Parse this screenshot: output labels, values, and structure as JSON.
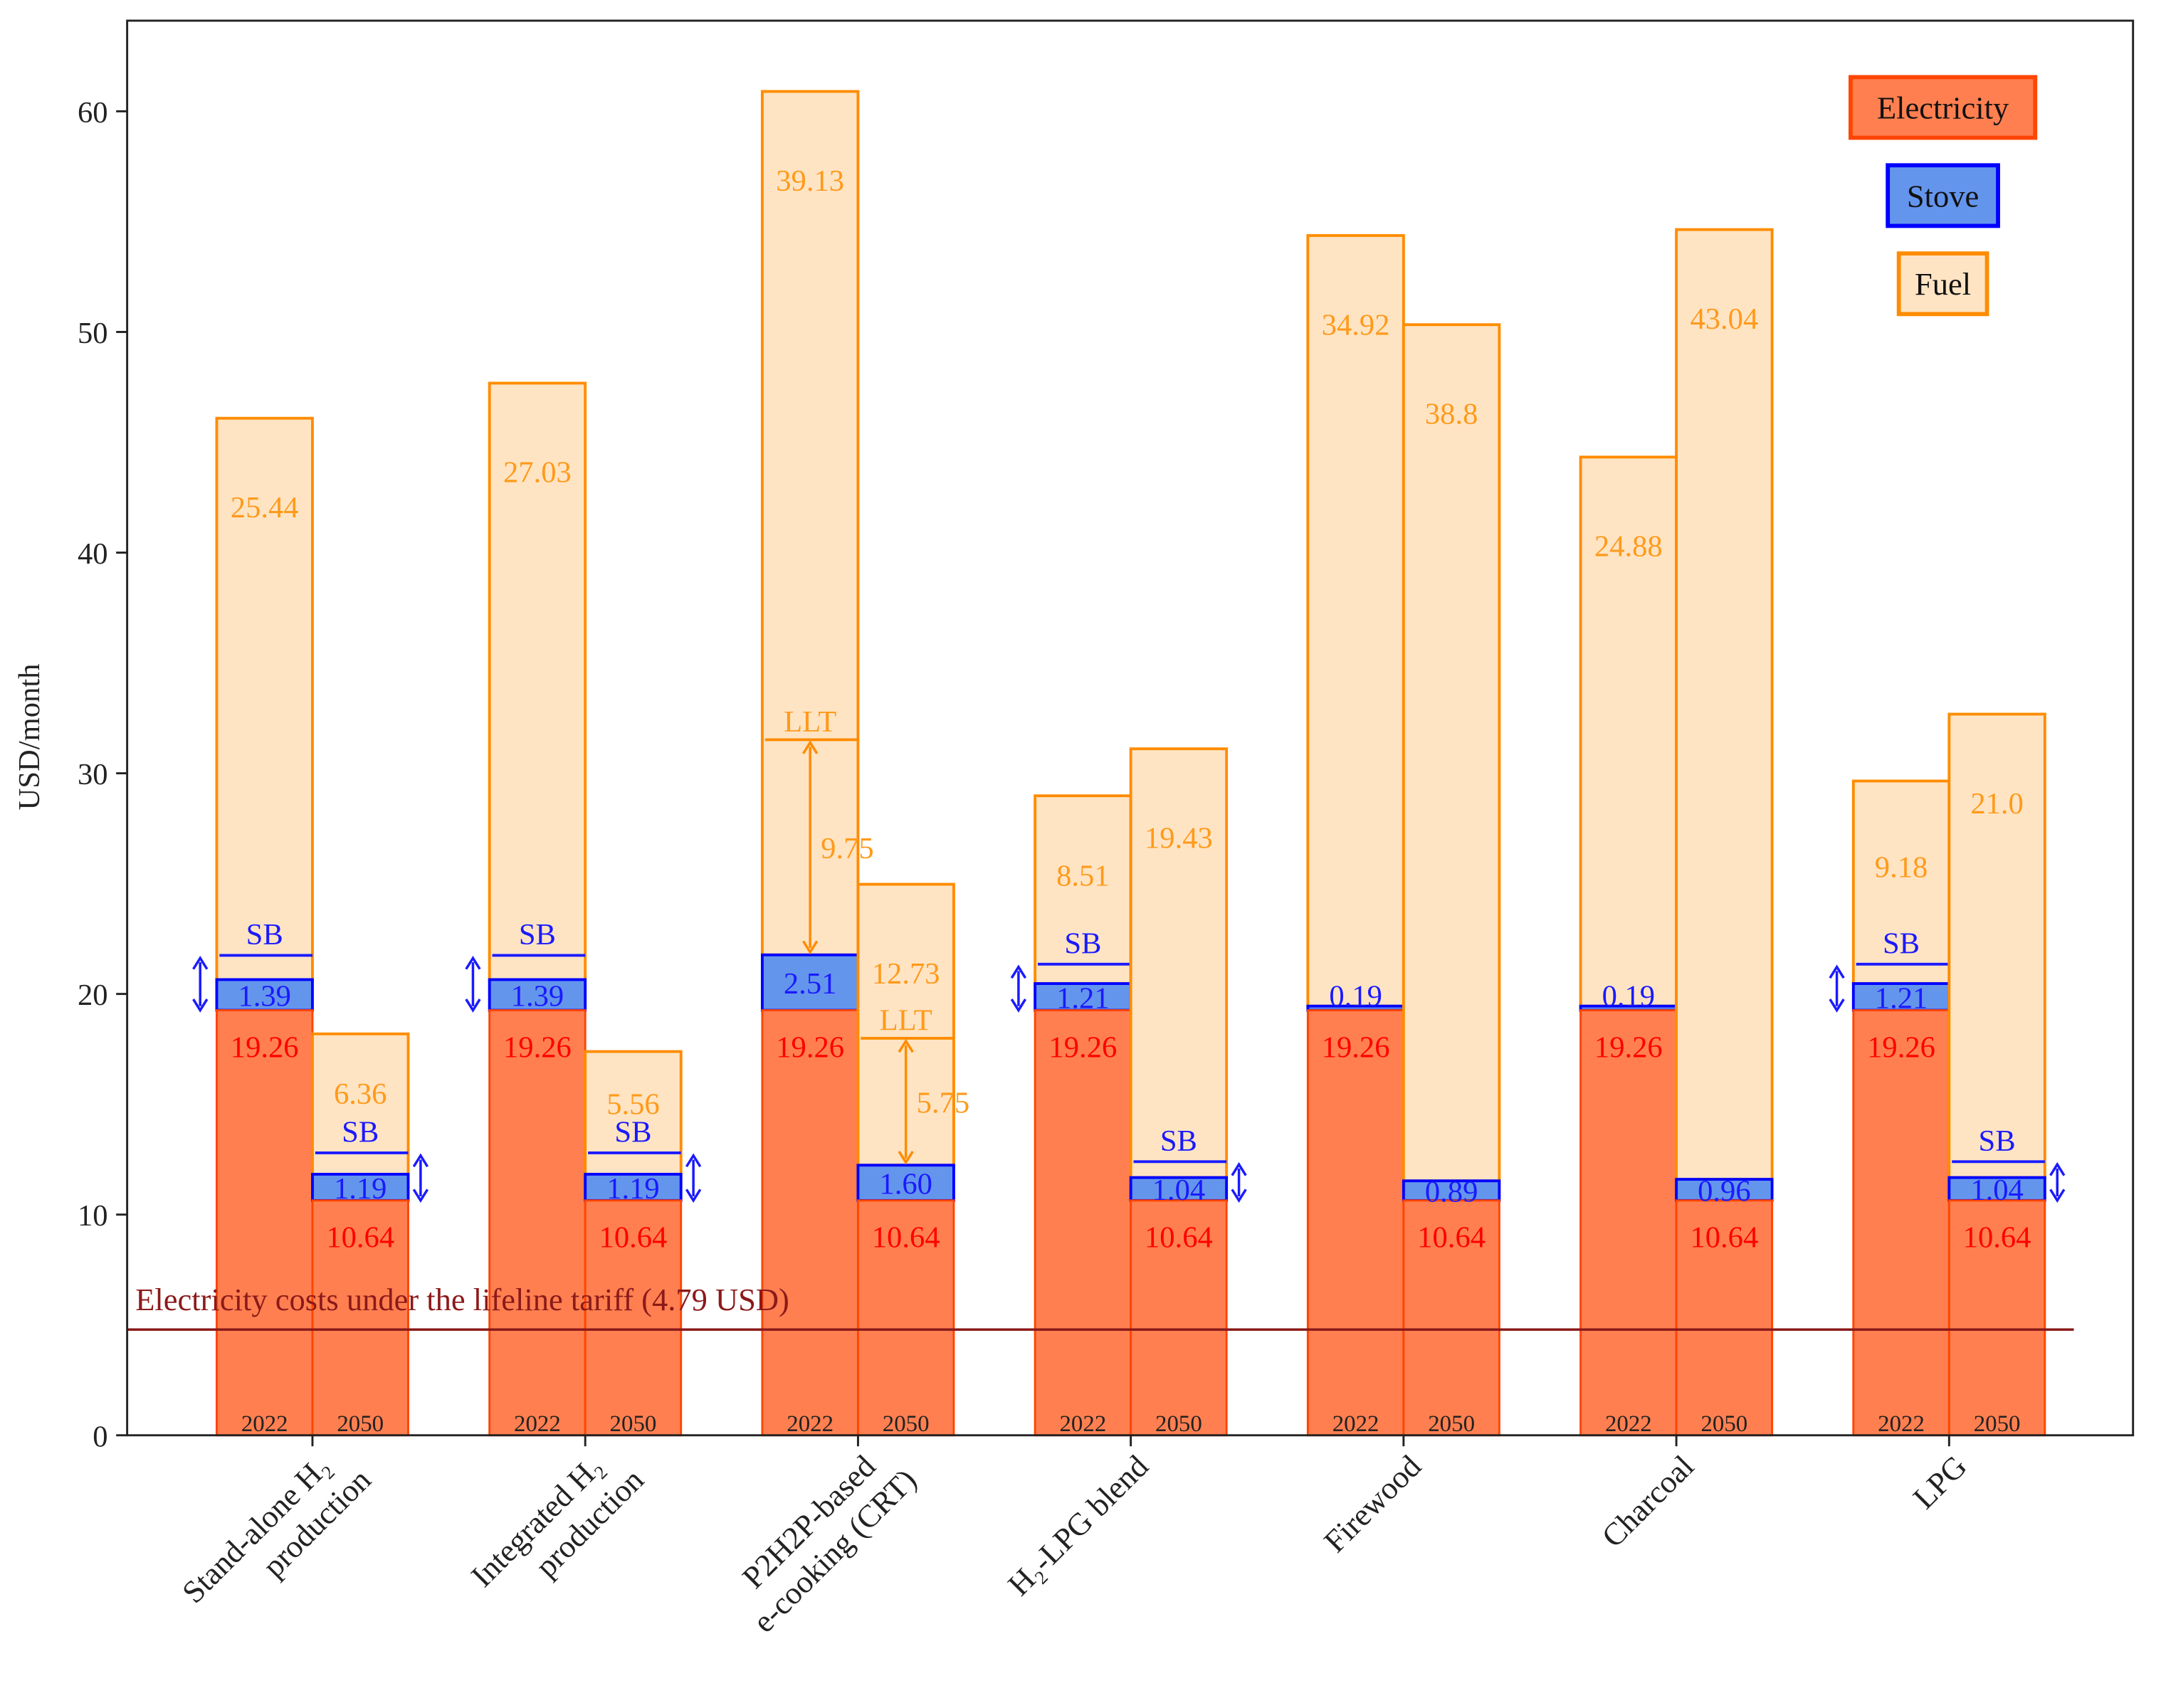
{
  "chart_data": {
    "type": "bar",
    "subtype": "grouped-stacked",
    "ylabel": "USD/month",
    "ylim": [
      0,
      64
    ],
    "yticks": [
      0,
      10,
      20,
      30,
      40,
      50,
      60
    ],
    "legend": {
      "placement": "top-right",
      "entries": [
        {
          "label": "Electricity",
          "fill": "#ff7f50",
          "edge": "#ff4500"
        },
        {
          "label": "Stove",
          "fill": "#6495ed",
          "edge": "#0000ff"
        },
        {
          "label": "Fuel",
          "fill": "#ffe4c4",
          "edge": "#ff8c00"
        }
      ]
    },
    "colors": {
      "electricity_text": "#ff0000",
      "stove_text": "#1a1aff",
      "fuel_text": "#ff9a1a",
      "lifeline": "#8b1a1a",
      "year_text": "#222222"
    },
    "sb_label": "SB",
    "llt_label": "LLT",
    "lifeline": {
      "value": 4.79,
      "label": "Electricity costs under the lifeline tariff (4.79 USD)"
    },
    "groups": [
      {
        "category": [
          "Stand-alone H₂",
          "production"
        ],
        "bars": [
          {
            "year": "2022",
            "electricity": 19.26,
            "stove": 1.39,
            "fuel": 25.44,
            "e_label": "19.26",
            "s_label": "1.39",
            "f_label": "25.44",
            "sb": 21.75
          },
          {
            "year": "2050",
            "electricity": 10.64,
            "stove": 1.19,
            "fuel": 6.36,
            "e_label": "10.64",
            "s_label": "1.19",
            "f_label": "6.36",
            "sb": 12.8
          }
        ]
      },
      {
        "category": [
          "Integrated H₂",
          "production"
        ],
        "bars": [
          {
            "year": "2022",
            "electricity": 19.26,
            "stove": 1.39,
            "fuel": 27.03,
            "e_label": "19.26",
            "s_label": "1.39",
            "f_label": "27.03",
            "sb": 21.75
          },
          {
            "year": "2050",
            "electricity": 10.64,
            "stove": 1.19,
            "fuel": 5.56,
            "e_label": "10.64",
            "s_label": "1.19",
            "f_label": "5.56",
            "sb": 12.8
          }
        ]
      },
      {
        "category": [
          "P2H2P-based",
          "e-cooking (CRT)"
        ],
        "bars": [
          {
            "year": "2022",
            "electricity": 19.26,
            "stove": 2.51,
            "fuel": 39.13,
            "e_label": "19.26",
            "s_label": "2.51",
            "f_label": "39.13",
            "llt": 31.52,
            "llt_diff": "9.75"
          },
          {
            "year": "2050",
            "electricity": 10.64,
            "stove": 1.6,
            "fuel": 12.73,
            "e_label": "10.64",
            "s_label": "1.60",
            "f_label": "12.73",
            "llt": 17.99,
            "llt_diff": "5.75"
          }
        ]
      },
      {
        "category": [
          "H₂-LPG blend"
        ],
        "bars": [
          {
            "year": "2022",
            "electricity": 19.26,
            "stove": 1.21,
            "fuel": 8.51,
            "e_label": "19.26",
            "s_label": "1.21",
            "f_label": "8.51",
            "sb": 21.35
          },
          {
            "year": "2050",
            "electricity": 10.64,
            "stove": 1.04,
            "fuel": 19.43,
            "e_label": "10.64",
            "s_label": "1.04",
            "f_label": "19.43",
            "sb": 12.4
          }
        ]
      },
      {
        "category": [
          "Firewood"
        ],
        "bars": [
          {
            "year": "2022",
            "electricity": 19.26,
            "stove": 0.19,
            "fuel": 34.92,
            "e_label": "19.26",
            "s_label": "0.19",
            "f_label": "34.92"
          },
          {
            "year": "2050",
            "electricity": 10.64,
            "stove": 0.89,
            "fuel": 38.8,
            "e_label": "10.64",
            "s_label": "0.89",
            "f_label": "38.8"
          }
        ]
      },
      {
        "category": [
          "Charcoal"
        ],
        "bars": [
          {
            "year": "2022",
            "electricity": 19.26,
            "stove": 0.19,
            "fuel": 24.88,
            "e_label": "19.26",
            "s_label": "0.19",
            "f_label": "24.88"
          },
          {
            "year": "2050",
            "electricity": 10.64,
            "stove": 0.96,
            "fuel": 43.04,
            "e_label": "10.64",
            "s_label": "0.96",
            "f_label": "43.04"
          }
        ]
      },
      {
        "category": [
          "LPG"
        ],
        "bars": [
          {
            "year": "2022",
            "electricity": 19.26,
            "stove": 1.21,
            "fuel": 9.18,
            "e_label": "19.26",
            "s_label": "1.21",
            "f_label": "9.18",
            "sb": 21.35
          },
          {
            "year": "2050",
            "electricity": 10.64,
            "stove": 1.04,
            "fuel": 21.0,
            "e_label": "10.64",
            "s_label": "1.04",
            "f_label": "21.0",
            "sb": 12.4
          }
        ]
      }
    ]
  }
}
